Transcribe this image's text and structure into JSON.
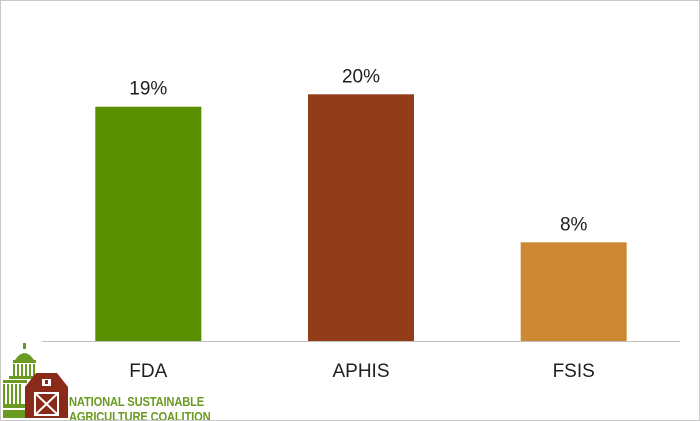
{
  "chart_data": {
    "type": "bar",
    "categories": [
      "FDA",
      "APHIS",
      "FSIS"
    ],
    "values": [
      19,
      20,
      8
    ],
    "data_labels": [
      "19%",
      "20%",
      "8%"
    ],
    "colors": [
      "#5a9000",
      "#923c19",
      "#cd8834"
    ],
    "title": "",
    "xlabel": "",
    "ylabel": "",
    "ylim": [
      0,
      21
    ],
    "grid": false,
    "legend": "none"
  },
  "logo": {
    "line1": "NATIONAL SUSTAINABLE",
    "line2": "AGRICULTURE COALITION",
    "colors": {
      "barn": "#8a2a18",
      "capitol": "#6a9a22",
      "text": "#6a9a22"
    }
  }
}
